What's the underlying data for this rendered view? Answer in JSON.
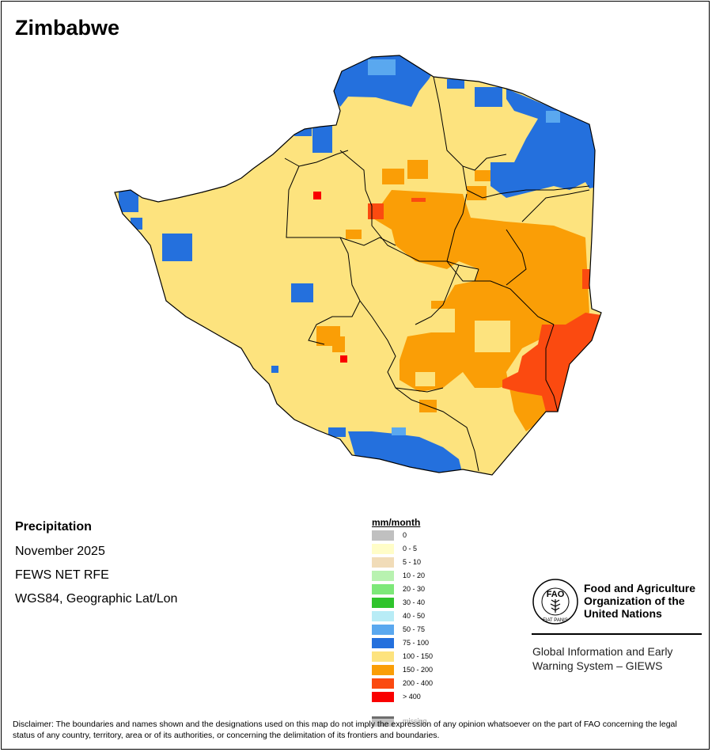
{
  "title": "Zimbabwe",
  "info": {
    "heading": "Precipitation",
    "period": "November 2025",
    "source": "FEWS NET RFE",
    "projection": "WGS84, Geographic Lat/Lon"
  },
  "legend": {
    "title": "mm/month",
    "items": [
      {
        "label": "0",
        "color": "#c0c0c0"
      },
      {
        "label": "0 - 5",
        "color": "#fffdc8"
      },
      {
        "label": "5 - 10",
        "color": "#f1dcb8"
      },
      {
        "label": "10 - 20",
        "color": "#b8f2b0"
      },
      {
        "label": "20 - 30",
        "color": "#7de879"
      },
      {
        "label": "30 - 40",
        "color": "#2fc42c"
      },
      {
        "label": "40 - 50",
        "color": "#b8ecf6"
      },
      {
        "label": "50 - 75",
        "color": "#5aa8ef"
      },
      {
        "label": "75 - 100",
        "color": "#2470dd"
      },
      {
        "label": "100 - 150",
        "color": "#fde37e"
      },
      {
        "label": "150 - 200",
        "color": "#fa9e06"
      },
      {
        "label": "200 - 400",
        "color": "#fb4a10"
      },
      {
        "label": "> 400",
        "color": "#f90000"
      },
      {
        "label": "missing",
        "color": "#6e6e6e"
      }
    ]
  },
  "logo": {
    "org_line1": "Food and Agriculture",
    "org_line2": "Organization of the",
    "org_line3": "United Nations",
    "system_line1": "Global Information and Early",
    "system_line2": "Warning System – GIEWS",
    "emblem_text": "FAO",
    "motto": "FIAT PANIS"
  },
  "disclaimer": "Disclaimer: The boundaries and names shown and the designations used on this map do not imply the expression of any opinion whatsoever on the part of FAO concerning the legal status of any country, territory, area or of its authorities, or concerning the delimitation of its frontiers and boundaries.",
  "colors": {
    "base": "#fde37e",
    "high": "#fa9e06",
    "very_high": "#fb4a10",
    "extreme": "#f90000",
    "low": "#2470dd",
    "low_light": "#5aa8ef",
    "border": "#000000"
  }
}
